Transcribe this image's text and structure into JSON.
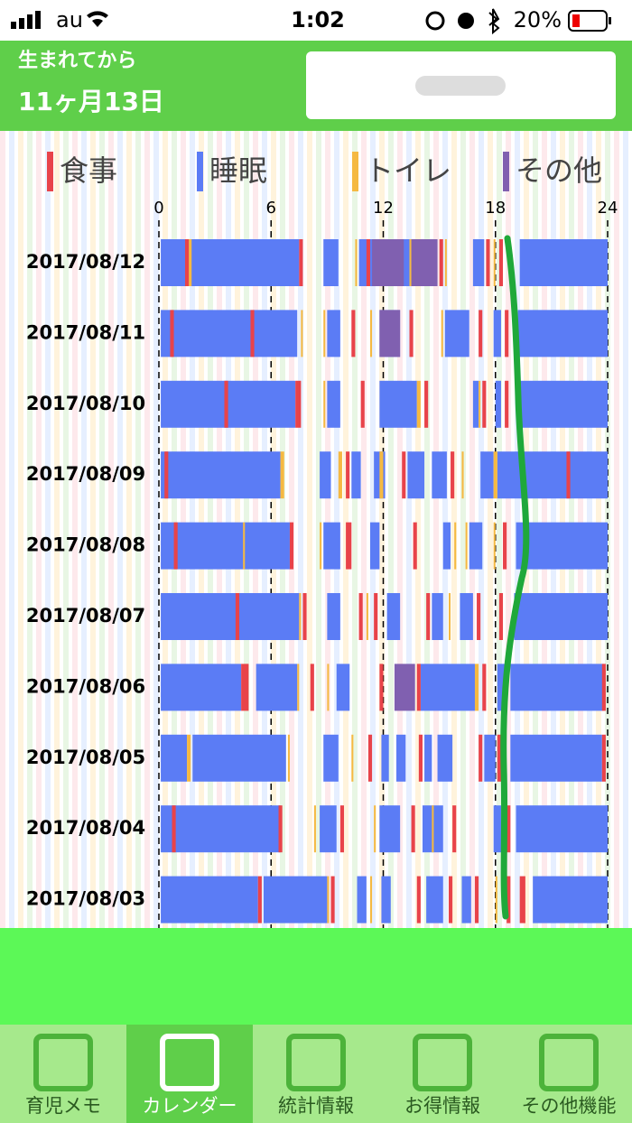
{
  "status_bar": {
    "carrier": "au",
    "time": "1:02",
    "battery": "20%"
  },
  "header": {
    "caption": "生まれてから",
    "age": "11ヶ月13日"
  },
  "chart": {
    "legend": [
      {
        "label": "食事",
        "color": "#e8434a"
      },
      {
        "label": "睡眠",
        "color": "#5b7cf5"
      },
      {
        "label": "トイレ",
        "color": "#f5b942"
      },
      {
        "label": "その他",
        "color": "#8060b0"
      }
    ],
    "xlim": [
      0,
      24
    ],
    "xticks": [
      0,
      6,
      12,
      18,
      24
    ],
    "rows": [
      {
        "date": "2017/08/12",
        "segments": [
          {
            "start": 0.1,
            "end": 7.5,
            "kind": "睡眠"
          },
          {
            "start": 8.8,
            "end": 9.6,
            "kind": "睡眠"
          },
          {
            "start": 10.7,
            "end": 14.9,
            "kind": "睡眠"
          },
          {
            "start": 16.8,
            "end": 17.4,
            "kind": "睡眠"
          },
          {
            "start": 19.3,
            "end": 24,
            "kind": "睡眠"
          },
          {
            "start": 1.4,
            "end": 1.6,
            "kind": "食事"
          },
          {
            "start": 1.6,
            "end": 1.75,
            "kind": "トイレ"
          },
          {
            "start": 7.5,
            "end": 7.7,
            "kind": "食事"
          },
          {
            "start": 10.5,
            "end": 10.6,
            "kind": "トイレ"
          },
          {
            "start": 11.1,
            "end": 11.3,
            "kind": "食事"
          },
          {
            "start": 11.4,
            "end": 13.1,
            "kind": "その他"
          },
          {
            "start": 13.5,
            "end": 14.9,
            "kind": "その他"
          },
          {
            "start": 13.4,
            "end": 13.5,
            "kind": "トイレ"
          },
          {
            "start": 15.0,
            "end": 15.2,
            "kind": "食事"
          },
          {
            "start": 15.3,
            "end": 15.4,
            "kind": "トイレ"
          },
          {
            "start": 17.5,
            "end": 17.7,
            "kind": "食事"
          },
          {
            "start": 17.9,
            "end": 18.0,
            "kind": "トイレ"
          },
          {
            "start": 18.2,
            "end": 18.4,
            "kind": "食事"
          }
        ]
      },
      {
        "date": "2017/08/11",
        "segments": [
          {
            "start": 0.1,
            "end": 7.4,
            "kind": "睡眠"
          },
          {
            "start": 9.0,
            "end": 9.7,
            "kind": "睡眠"
          },
          {
            "start": 11.8,
            "end": 12.9,
            "kind": "睡眠"
          },
          {
            "start": 15.3,
            "end": 16.6,
            "kind": "睡眠"
          },
          {
            "start": 17.9,
            "end": 18.3,
            "kind": "睡眠"
          },
          {
            "start": 19.2,
            "end": 24,
            "kind": "睡眠"
          },
          {
            "start": 0.6,
            "end": 0.8,
            "kind": "食事"
          },
          {
            "start": 4.9,
            "end": 5.1,
            "kind": "食事"
          },
          {
            "start": 7.6,
            "end": 7.7,
            "kind": "トイレ"
          },
          {
            "start": 8.8,
            "end": 8.9,
            "kind": "トイレ"
          },
          {
            "start": 10.3,
            "end": 10.5,
            "kind": "食事"
          },
          {
            "start": 11.3,
            "end": 11.4,
            "kind": "トイレ"
          },
          {
            "start": 11.8,
            "end": 12.9,
            "kind": "その他"
          },
          {
            "start": 13.4,
            "end": 13.6,
            "kind": "食事"
          },
          {
            "start": 15.1,
            "end": 15.2,
            "kind": "トイレ"
          },
          {
            "start": 17.1,
            "end": 17.3,
            "kind": "食事"
          },
          {
            "start": 18.5,
            "end": 18.7,
            "kind": "食事"
          }
        ]
      },
      {
        "date": "2017/08/10",
        "segments": [
          {
            "start": 0.1,
            "end": 7.3,
            "kind": "睡眠"
          },
          {
            "start": 9.0,
            "end": 9.7,
            "kind": "睡眠"
          },
          {
            "start": 11.8,
            "end": 13.8,
            "kind": "睡眠"
          },
          {
            "start": 16.8,
            "end": 17.1,
            "kind": "睡眠"
          },
          {
            "start": 18.0,
            "end": 18.3,
            "kind": "睡眠"
          },
          {
            "start": 19.2,
            "end": 24,
            "kind": "睡眠"
          },
          {
            "start": 3.5,
            "end": 3.7,
            "kind": "食事"
          },
          {
            "start": 7.3,
            "end": 7.6,
            "kind": "食事"
          },
          {
            "start": 8.8,
            "end": 8.9,
            "kind": "トイレ"
          },
          {
            "start": 10.8,
            "end": 11.0,
            "kind": "食事"
          },
          {
            "start": 13.8,
            "end": 14.0,
            "kind": "トイレ"
          },
          {
            "start": 14.2,
            "end": 14.4,
            "kind": "食事"
          },
          {
            "start": 17.1,
            "end": 17.2,
            "kind": "トイレ"
          },
          {
            "start": 17.3,
            "end": 17.5,
            "kind": "食事"
          },
          {
            "start": 18.5,
            "end": 18.7,
            "kind": "食事"
          }
        ]
      },
      {
        "date": "2017/08/09",
        "segments": [
          {
            "start": 0.1,
            "end": 6.5,
            "kind": "睡眠"
          },
          {
            "start": 8.6,
            "end": 9.2,
            "kind": "睡眠"
          },
          {
            "start": 10.3,
            "end": 10.8,
            "kind": "睡眠"
          },
          {
            "start": 11.5,
            "end": 12.1,
            "kind": "睡眠"
          },
          {
            "start": 13.3,
            "end": 14.2,
            "kind": "睡眠"
          },
          {
            "start": 14.6,
            "end": 15.4,
            "kind": "睡眠"
          },
          {
            "start": 17.2,
            "end": 17.9,
            "kind": "睡眠"
          },
          {
            "start": 18.1,
            "end": 24,
            "kind": "睡眠"
          },
          {
            "start": 0.3,
            "end": 0.5,
            "kind": "食事"
          },
          {
            "start": 6.5,
            "end": 6.7,
            "kind": "トイレ"
          },
          {
            "start": 9.6,
            "end": 9.8,
            "kind": "トイレ"
          },
          {
            "start": 10.0,
            "end": 10.2,
            "kind": "食事"
          },
          {
            "start": 11.8,
            "end": 12.0,
            "kind": "トイレ"
          },
          {
            "start": 13.0,
            "end": 13.2,
            "kind": "食事"
          },
          {
            "start": 15.6,
            "end": 15.8,
            "kind": "食事"
          },
          {
            "start": 16.2,
            "end": 16.3,
            "kind": "トイレ"
          },
          {
            "start": 17.9,
            "end": 18.1,
            "kind": "トイレ"
          },
          {
            "start": 21.8,
            "end": 22.0,
            "kind": "食事"
          }
        ]
      },
      {
        "date": "2017/08/08",
        "segments": [
          {
            "start": 0.1,
            "end": 7.0,
            "kind": "睡眠"
          },
          {
            "start": 8.8,
            "end": 9.7,
            "kind": "睡眠"
          },
          {
            "start": 11.3,
            "end": 11.8,
            "kind": "睡眠"
          },
          {
            "start": 15.2,
            "end": 15.6,
            "kind": "睡眠"
          },
          {
            "start": 16.6,
            "end": 17.3,
            "kind": "睡眠"
          },
          {
            "start": 19.1,
            "end": 24,
            "kind": "睡眠"
          },
          {
            "start": 0.8,
            "end": 1.0,
            "kind": "食事"
          },
          {
            "start": 4.5,
            "end": 4.6,
            "kind": "トイレ"
          },
          {
            "start": 7.0,
            "end": 7.2,
            "kind": "食事"
          },
          {
            "start": 8.6,
            "end": 8.7,
            "kind": "トイレ"
          },
          {
            "start": 10.0,
            "end": 10.3,
            "kind": "食事"
          },
          {
            "start": 13.6,
            "end": 13.8,
            "kind": "食事"
          },
          {
            "start": 15.8,
            "end": 15.9,
            "kind": "トイレ"
          },
          {
            "start": 16.4,
            "end": 16.5,
            "kind": "トイレ"
          },
          {
            "start": 17.9,
            "end": 18.0,
            "kind": "トイレ"
          },
          {
            "start": 18.4,
            "end": 18.6,
            "kind": "食事"
          }
        ]
      },
      {
        "date": "2017/08/07",
        "segments": [
          {
            "start": 0.1,
            "end": 7.5,
            "kind": "睡眠"
          },
          {
            "start": 9.0,
            "end": 9.7,
            "kind": "睡眠"
          },
          {
            "start": 12.2,
            "end": 12.9,
            "kind": "睡眠"
          },
          {
            "start": 14.6,
            "end": 15.2,
            "kind": "睡眠"
          },
          {
            "start": 16.1,
            "end": 16.8,
            "kind": "睡眠"
          },
          {
            "start": 19.0,
            "end": 24,
            "kind": "睡眠"
          },
          {
            "start": 4.1,
            "end": 4.3,
            "kind": "食事"
          },
          {
            "start": 7.5,
            "end": 7.6,
            "kind": "トイレ"
          },
          {
            "start": 7.7,
            "end": 7.9,
            "kind": "食事"
          },
          {
            "start": 10.7,
            "end": 10.9,
            "kind": "食事"
          },
          {
            "start": 11.1,
            "end": 11.2,
            "kind": "トイレ"
          },
          {
            "start": 11.5,
            "end": 11.7,
            "kind": "食事"
          },
          {
            "start": 14.3,
            "end": 14.5,
            "kind": "食事"
          },
          {
            "start": 15.5,
            "end": 15.6,
            "kind": "トイレ"
          },
          {
            "start": 17.0,
            "end": 17.2,
            "kind": "食事"
          },
          {
            "start": 18.2,
            "end": 18.4,
            "kind": "食事"
          }
        ]
      },
      {
        "date": "2017/08/06",
        "segments": [
          {
            "start": 0.1,
            "end": 4.4,
            "kind": "睡眠"
          },
          {
            "start": 5.2,
            "end": 7.4,
            "kind": "睡眠"
          },
          {
            "start": 9.5,
            "end": 10.2,
            "kind": "睡眠"
          },
          {
            "start": 14.0,
            "end": 16.9,
            "kind": "睡眠"
          },
          {
            "start": 18.1,
            "end": 18.6,
            "kind": "睡眠"
          },
          {
            "start": 18.8,
            "end": 23.8,
            "kind": "睡眠"
          },
          {
            "start": 4.4,
            "end": 4.8,
            "kind": "食事"
          },
          {
            "start": 7.4,
            "end": 7.5,
            "kind": "トイレ"
          },
          {
            "start": 8.1,
            "end": 8.3,
            "kind": "食事"
          },
          {
            "start": 9.0,
            "end": 9.1,
            "kind": "トイレ"
          },
          {
            "start": 11.8,
            "end": 12.0,
            "kind": "食事"
          },
          {
            "start": 12.6,
            "end": 13.7,
            "kind": "その他"
          },
          {
            "start": 13.8,
            "end": 14.0,
            "kind": "食事"
          },
          {
            "start": 16.9,
            "end": 17.1,
            "kind": "トイレ"
          },
          {
            "start": 17.3,
            "end": 17.5,
            "kind": "食事"
          },
          {
            "start": 23.7,
            "end": 23.9,
            "kind": "食事"
          }
        ]
      },
      {
        "date": "2017/08/05",
        "segments": [
          {
            "start": 0.1,
            "end": 1.5,
            "kind": "睡眠"
          },
          {
            "start": 1.8,
            "end": 6.8,
            "kind": "睡眠"
          },
          {
            "start": 8.8,
            "end": 9.6,
            "kind": "睡眠"
          },
          {
            "start": 11.9,
            "end": 12.3,
            "kind": "睡眠"
          },
          {
            "start": 12.7,
            "end": 13.2,
            "kind": "睡眠"
          },
          {
            "start": 14.2,
            "end": 14.6,
            "kind": "睡眠"
          },
          {
            "start": 14.9,
            "end": 15.7,
            "kind": "睡眠"
          },
          {
            "start": 17.4,
            "end": 18.0,
            "kind": "睡眠"
          },
          {
            "start": 18.8,
            "end": 23.7,
            "kind": "睡眠"
          },
          {
            "start": 1.5,
            "end": 1.7,
            "kind": "トイレ"
          },
          {
            "start": 6.9,
            "end": 7.0,
            "kind": "トイレ"
          },
          {
            "start": 10.3,
            "end": 10.4,
            "kind": "トイレ"
          },
          {
            "start": 11.2,
            "end": 11.4,
            "kind": "食事"
          },
          {
            "start": 13.9,
            "end": 14.1,
            "kind": "食事"
          },
          {
            "start": 17.1,
            "end": 17.3,
            "kind": "食事"
          },
          {
            "start": 18.1,
            "end": 18.3,
            "kind": "食事"
          },
          {
            "start": 23.7,
            "end": 23.9,
            "kind": "食事"
          }
        ]
      },
      {
        "date": "2017/08/04",
        "segments": [
          {
            "start": 0.1,
            "end": 6.5,
            "kind": "睡眠"
          },
          {
            "start": 8.6,
            "end": 9.5,
            "kind": "睡眠"
          },
          {
            "start": 11.8,
            "end": 12.9,
            "kind": "睡眠"
          },
          {
            "start": 14.1,
            "end": 15.2,
            "kind": "睡眠"
          },
          {
            "start": 17.9,
            "end": 18.3,
            "kind": "睡眠"
          },
          {
            "start": 19.1,
            "end": 24,
            "kind": "睡眠"
          },
          {
            "start": 0.7,
            "end": 0.9,
            "kind": "食事"
          },
          {
            "start": 6.4,
            "end": 6.6,
            "kind": "食事"
          },
          {
            "start": 8.3,
            "end": 8.4,
            "kind": "トイレ"
          },
          {
            "start": 9.7,
            "end": 9.9,
            "kind": "食事"
          },
          {
            "start": 11.5,
            "end": 11.6,
            "kind": "トイレ"
          },
          {
            "start": 13.5,
            "end": 13.7,
            "kind": "食事"
          },
          {
            "start": 14.6,
            "end": 14.7,
            "kind": "トイレ"
          },
          {
            "start": 15.7,
            "end": 15.9,
            "kind": "食事"
          },
          {
            "start": 18.6,
            "end": 18.8,
            "kind": "食事"
          }
        ]
      },
      {
        "date": "2017/08/03",
        "segments": [
          {
            "start": 0.1,
            "end": 5.3,
            "kind": "睡眠"
          },
          {
            "start": 5.6,
            "end": 9.0,
            "kind": "睡眠"
          },
          {
            "start": 10.6,
            "end": 11.1,
            "kind": "睡眠"
          },
          {
            "start": 11.9,
            "end": 12.4,
            "kind": "睡眠"
          },
          {
            "start": 14.3,
            "end": 15.2,
            "kind": "睡眠"
          },
          {
            "start": 16.2,
            "end": 16.7,
            "kind": "睡眠"
          },
          {
            "start": 20.0,
            "end": 24,
            "kind": "睡眠"
          },
          {
            "start": 5.3,
            "end": 5.5,
            "kind": "食事"
          },
          {
            "start": 9.0,
            "end": 9.1,
            "kind": "トイレ"
          },
          {
            "start": 9.2,
            "end": 9.4,
            "kind": "食事"
          },
          {
            "start": 11.3,
            "end": 11.4,
            "kind": "トイレ"
          },
          {
            "start": 13.8,
            "end": 14.0,
            "kind": "食事"
          },
          {
            "start": 15.5,
            "end": 15.7,
            "kind": "食事"
          },
          {
            "start": 16.9,
            "end": 17.1,
            "kind": "食事"
          },
          {
            "start": 18.0,
            "end": 18.1,
            "kind": "トイレ"
          },
          {
            "start": 18.6,
            "end": 18.8,
            "kind": "食事"
          },
          {
            "start": 19.3,
            "end": 19.6,
            "kind": "食事"
          }
        ]
      }
    ]
  },
  "tabs": [
    {
      "label": "育児メモ"
    },
    {
      "label": "カレンダー"
    },
    {
      "label": "統計情報"
    },
    {
      "label": "お得情報"
    },
    {
      "label": "その他機能"
    }
  ],
  "active_tab": 1
}
